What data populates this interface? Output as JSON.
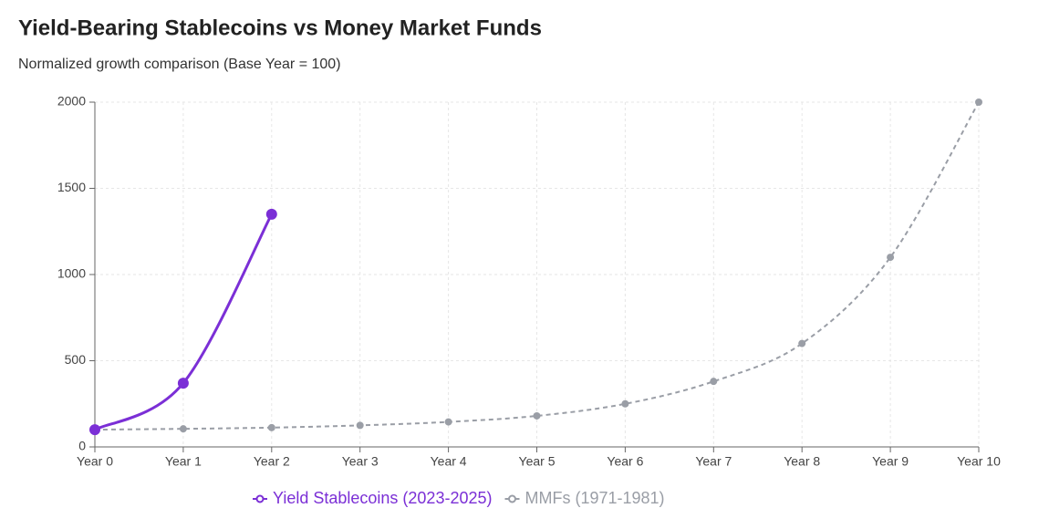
{
  "chart_data": {
    "type": "line",
    "title": "Yield-Bearing Stablecoins vs Money Market Funds",
    "subtitle": "Normalized growth comparison (Base Year = 100)",
    "categories": [
      "Year 0",
      "Year 1",
      "Year 2",
      "Year 3",
      "Year 4",
      "Year 5",
      "Year 6",
      "Year 7",
      "Year 8",
      "Year 9",
      "Year 10"
    ],
    "series": [
      {
        "name": "Yield Stablecoins (2023-2025)",
        "color": "#7b2fd6",
        "dash": false,
        "values": [
          100,
          370,
          1350,
          null,
          null,
          null,
          null,
          null,
          null,
          null,
          null
        ]
      },
      {
        "name": "MMFs (1971-1981)",
        "color": "#9a9ea6",
        "dash": true,
        "values": [
          100,
          105,
          112,
          125,
          145,
          180,
          250,
          380,
          600,
          1100,
          2000
        ]
      }
    ],
    "ylim": [
      0,
      2000
    ],
    "yticks": [
      0,
      500,
      1000,
      1500,
      2000
    ],
    "grid": true
  }
}
